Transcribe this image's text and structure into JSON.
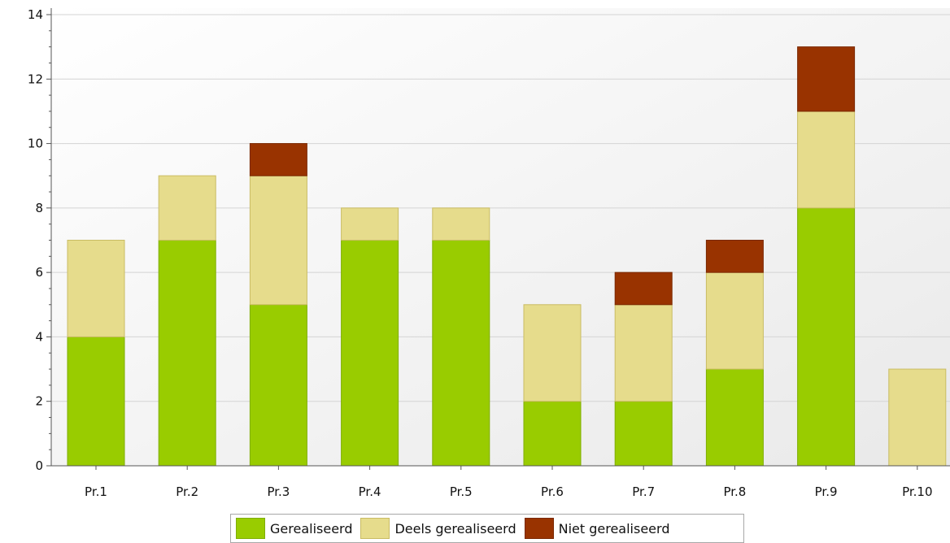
{
  "chart_data": {
    "type": "bar",
    "stacked": true,
    "title": "",
    "xlabel": "",
    "ylabel": "",
    "categories": [
      "Pr.1",
      "Pr.2",
      "Pr.3",
      "Pr.4",
      "Pr.5",
      "Pr.6",
      "Pr.7",
      "Pr.8",
      "Pr.9",
      "Pr.10"
    ],
    "series": [
      {
        "name": "Gerealiseerd",
        "values": [
          4,
          7,
          5,
          7,
          7,
          2,
          2,
          3,
          8,
          0
        ],
        "color": "#99cc00",
        "border": "#7fae00"
      },
      {
        "name": "Deels gerealiseerd",
        "values": [
          3,
          2,
          4,
          1,
          1,
          3,
          3,
          3,
          3,
          3
        ],
        "color": "#e6dc8c",
        "border": "#c9bc64"
      },
      {
        "name": "Niet gerealiseerd",
        "values": [
          0,
          0,
          1,
          0,
          0,
          0,
          1,
          1,
          2,
          0
        ],
        "color": "#993300",
        "border": "#7a2800"
      }
    ],
    "ylim": [
      0,
      14
    ],
    "yticks": [
      0,
      2,
      4,
      6,
      8,
      10,
      12,
      14
    ],
    "grid": true,
    "legend_position": "bottom"
  }
}
